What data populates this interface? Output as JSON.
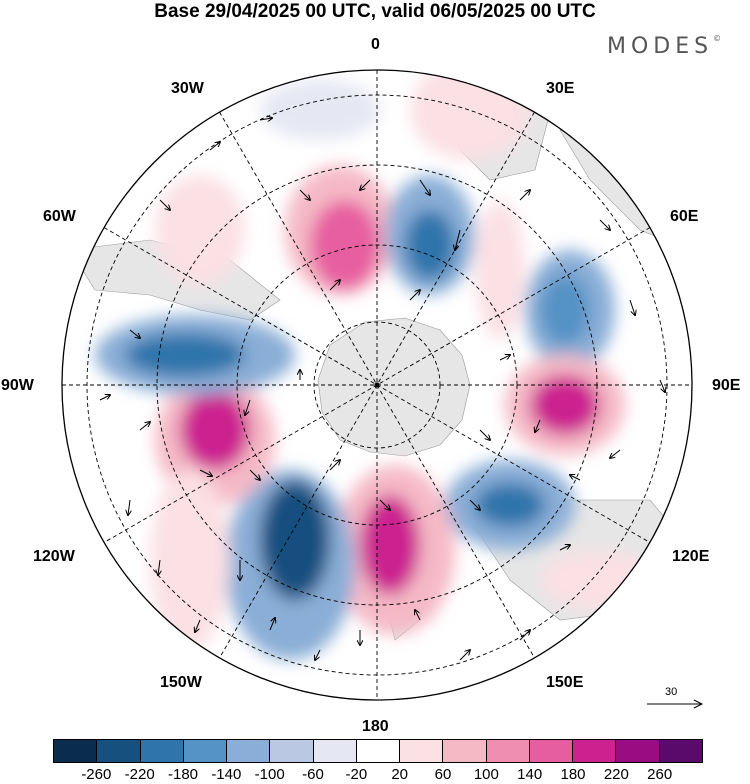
{
  "title": "Base 29/04/2025 00 UTC, valid 06/05/2025 00 UTC",
  "brand": "MODES",
  "brand_mark": "©",
  "longitude_labels": {
    "top": "0",
    "bottom": "180",
    "left": "90W",
    "right": "90E",
    "lon30w": "30W",
    "lon30e": "30E",
    "lon60w": "60W",
    "lon60e": "60E",
    "lon120w": "120W",
    "lon120e": "120E",
    "lon150w": "150W",
    "lon150e": "150E"
  },
  "reference_vector": "30",
  "colorbar": {
    "colors": [
      "#0b2d4d",
      "#16507f",
      "#2f74ab",
      "#5592c5",
      "#8aaed7",
      "#bac8e4",
      "#e5e7f3",
      "#ffffff",
      "#fbe0e4",
      "#f5b9c6",
      "#ef8eb0",
      "#e75ea0",
      "#cc2290",
      "#9a0c82",
      "#5a0a6a"
    ],
    "tick_labels": [
      "-260",
      "-220",
      "-180",
      "-140",
      "-100",
      "-60",
      "-20",
      "20",
      "60",
      "100",
      "140",
      "180",
      "220",
      "260"
    ]
  }
}
